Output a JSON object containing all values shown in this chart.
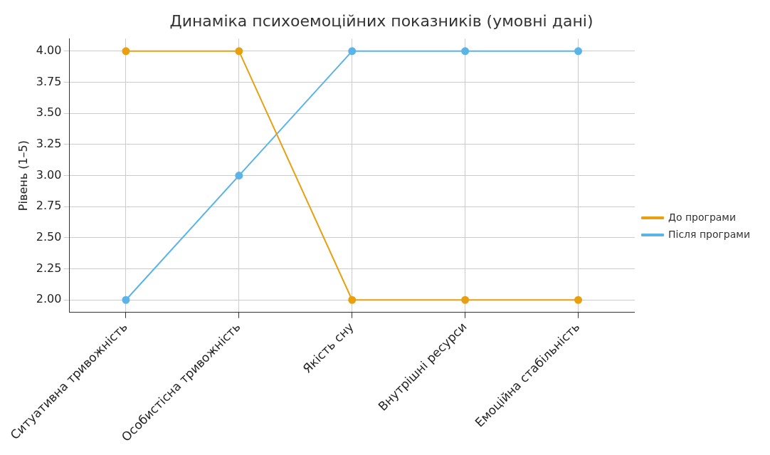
{
  "chart_data": {
    "type": "line",
    "title": "Динаміка психоемоційних показників (умовні дані)",
    "ylabel": "Рівень (1–5)",
    "categories": [
      "Ситуативна тривожність",
      "Особистісна тривожність",
      "Якість сну",
      "Внутрішні ресурси",
      "Емоційна стабільність"
    ],
    "series": [
      {
        "name": "До програми",
        "color": "#e8a010",
        "values": [
          4,
          4,
          2,
          2,
          2
        ]
      },
      {
        "name": "Після програми",
        "color": "#5ab4e8",
        "values": [
          2,
          3,
          4,
          4,
          4
        ]
      }
    ],
    "ylim": [
      1.9,
      4.1
    ],
    "yticks": [
      {
        "value": 2,
        "label": "2.00"
      },
      {
        "value": 2.25,
        "label": "2.25"
      },
      {
        "value": 2.5,
        "label": "2.50"
      },
      {
        "value": 2.75,
        "label": "2.75"
      },
      {
        "value": 3,
        "label": "3.00"
      },
      {
        "value": 3.25,
        "label": "3.25"
      },
      {
        "value": 3.5,
        "label": "3.50"
      },
      {
        "value": 3.75,
        "label": "3.75"
      },
      {
        "value": 4,
        "label": "4.00"
      }
    ],
    "grid": true,
    "legend": "right",
    "marker": "circle",
    "line_style": "solid"
  }
}
